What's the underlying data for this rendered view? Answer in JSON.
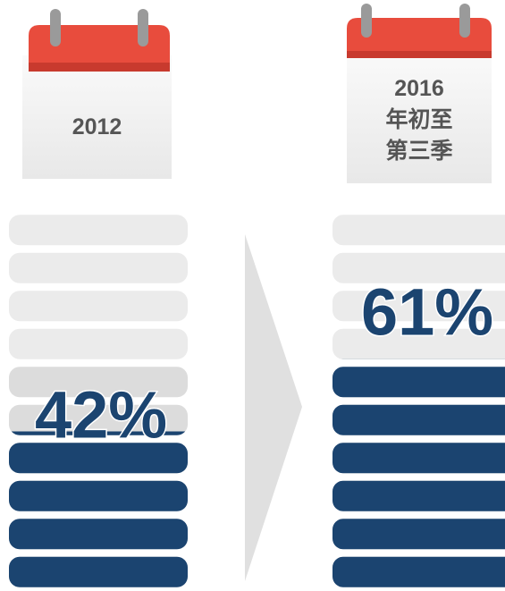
{
  "chart_data": {
    "type": "gauge",
    "categories": [
      "2012",
      "2016\n年初至\n第三季"
    ],
    "values": [
      42,
      61
    ],
    "value_labels": [
      "42%",
      "61%"
    ],
    "ylim": [
      0,
      100
    ],
    "color": "#1b4470"
  }
}
